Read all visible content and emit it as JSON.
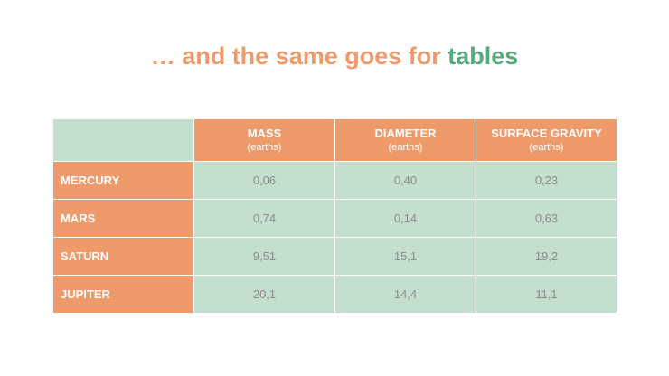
{
  "title": {
    "main": "… and the same goes for ",
    "accent": "tables"
  },
  "colors": {
    "orange": "#ef9a6a",
    "green_text": "#55a97a",
    "green_cell": "#c5dfcf",
    "value_text": "#8a8a8a"
  },
  "table": {
    "columns": [
      {
        "title": "MASS",
        "unit": "(earths)"
      },
      {
        "title": "DIAMETER",
        "unit": "(earths)"
      },
      {
        "title": "SURFACE GRAVITY",
        "unit": "(earths)"
      }
    ],
    "rows": [
      {
        "label": "MERCURY",
        "values": [
          "0,06",
          "0,40",
          "0,23"
        ]
      },
      {
        "label": "MARS",
        "values": [
          "0,74",
          "0,14",
          "0,63"
        ]
      },
      {
        "label": "SATURN",
        "values": [
          "9,51",
          "15,1",
          "19,2"
        ]
      },
      {
        "label": "JUPITER",
        "values": [
          "20,1",
          "14,4",
          "11,1"
        ]
      }
    ]
  }
}
